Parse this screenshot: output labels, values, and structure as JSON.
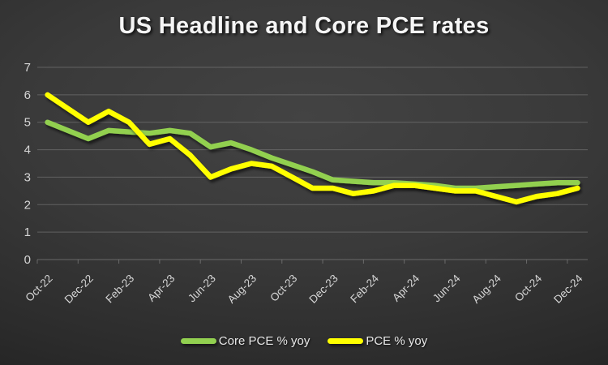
{
  "title": "US Headline and Core PCE rates",
  "chart_data": {
    "type": "line",
    "title": "US Headline and Core PCE rates",
    "categories": [
      "Oct-22",
      "Nov-22",
      "Dec-22",
      "Jan-23",
      "Feb-23",
      "Mar-23",
      "Apr-23",
      "May-23",
      "Jun-23",
      "Jul-23",
      "Aug-23",
      "Sep-23",
      "Oct-23",
      "Nov-23",
      "Dec-23",
      "Jan-24",
      "Feb-24",
      "Mar-24",
      "Apr-24",
      "May-24",
      "Jun-24",
      "Jul-24",
      "Aug-24",
      "Sep-24",
      "Oct-24",
      "Nov-24",
      "Dec-24"
    ],
    "x_tick_labels": [
      "Oct-22",
      "Dec-22",
      "Feb-23",
      "Apr-23",
      "Jun-23",
      "Aug-23",
      "Oct-23",
      "Dec-23",
      "Feb-24",
      "Apr-24",
      "Jun-24",
      "Aug-24",
      "Oct-24",
      "Dec-24"
    ],
    "series": [
      {
        "name": "Core PCE % yoy",
        "color": "#92D050",
        "values": [
          5.0,
          4.7,
          4.4,
          4.7,
          4.65,
          4.6,
          4.7,
          4.6,
          4.1,
          4.25,
          4.0,
          3.7,
          3.45,
          3.2,
          2.9,
          2.85,
          2.8,
          2.8,
          2.75,
          2.7,
          2.6,
          2.6,
          2.65,
          2.7,
          2.75,
          2.8,
          2.8
        ]
      },
      {
        "name": "PCE % yoy",
        "color": "#FFFF00",
        "values": [
          6.0,
          5.5,
          5.0,
          5.4,
          5.0,
          4.2,
          4.4,
          3.8,
          3.0,
          3.3,
          3.5,
          3.4,
          3.0,
          2.6,
          2.6,
          2.4,
          2.5,
          2.7,
          2.7,
          2.6,
          2.5,
          2.5,
          2.3,
          2.1,
          2.3,
          2.4,
          2.6
        ]
      }
    ],
    "ylim": [
      0,
      7
    ],
    "y_ticks": [
      0,
      1,
      2,
      3,
      4,
      5,
      6,
      7
    ],
    "grid": "horizontal",
    "legend_position": "bottom",
    "xlabel": "",
    "ylabel": ""
  },
  "colors": {
    "background_center": "#434343",
    "background_edge": "#1e1e1e",
    "gridline": "#848484",
    "axis_line": "#8c8c8c",
    "axis_label": "#d6d6d6",
    "title_text": "#f5f5f5",
    "legend_text": "#e8e8e8",
    "core_line": "#92D050",
    "pce_line": "#FFFF00"
  }
}
